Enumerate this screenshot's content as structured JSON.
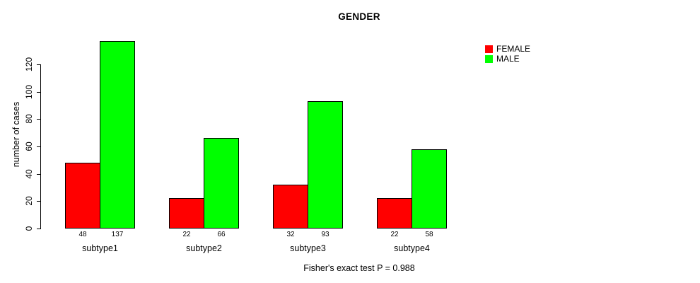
{
  "chart_data": {
    "type": "bar",
    "title": "GENDER",
    "xlabel": "",
    "ylabel": "number of cases",
    "categories": [
      "subtype1",
      "subtype2",
      "subtype3",
      "subtype4"
    ],
    "series": [
      {
        "name": "FEMALE",
        "color": "#FF0000",
        "values": [
          48,
          22,
          32,
          22
        ]
      },
      {
        "name": "MALE",
        "color": "#00FF00",
        "values": [
          137,
          66,
          93,
          58
        ]
      }
    ],
    "bar_value_labels": {
      "FEMALE": [
        48,
        22,
        32,
        22
      ],
      "MALE": [
        137,
        66,
        93,
        58
      ]
    },
    "yticks": [
      0,
      20,
      40,
      60,
      80,
      100,
      120
    ],
    "ylim": [
      0,
      137
    ],
    "grid": false,
    "legend_position": "top-right",
    "annotation": "Fisher's exact test P = 0.988",
    "bar_border_color": "#000000",
    "text_color": "#000000",
    "background_color": "#FFFFFF"
  }
}
